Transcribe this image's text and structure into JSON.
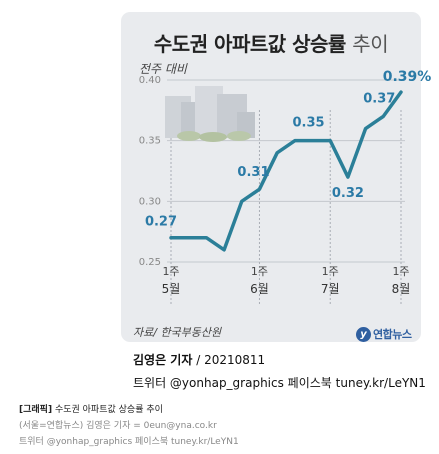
{
  "chart_data": {
    "type": "line",
    "title": "수도권 아파트값 상승률",
    "title_suffix": "추이",
    "subtitle": "전주 대비",
    "x": [
      0,
      1,
      2,
      3,
      4,
      5,
      6,
      7,
      8,
      9,
      10,
      11,
      12,
      13
    ],
    "values": [
      0.27,
      0.27,
      0.27,
      0.26,
      0.3,
      0.31,
      0.34,
      0.35,
      0.35,
      0.35,
      0.32,
      0.36,
      0.37,
      0.39
    ],
    "data_labels": [
      {
        "index": 0,
        "text": "0.27"
      },
      {
        "index": 5,
        "text": "0.31"
      },
      {
        "index": 8,
        "text": "0.35"
      },
      {
        "index": 10,
        "text": "0.32"
      },
      {
        "index": 12,
        "text": "0.37"
      },
      {
        "index": 13,
        "text": "0.39%"
      }
    ],
    "ylim": [
      0.25,
      0.4
    ],
    "y_ticks": [
      "0.25",
      "0.30",
      "0.35",
      "0.40"
    ],
    "x_ticks": [
      {
        "index": 0,
        "week": "1주",
        "month": "5월"
      },
      {
        "index": 5,
        "week": "1주",
        "month": "6월"
      },
      {
        "index": 9,
        "week": "1주",
        "month": "7월"
      },
      {
        "index": 13,
        "week": "1주",
        "month": "8월"
      }
    ],
    "grid": true,
    "line_color": "#2b7f98",
    "label_color": "#2b7aa6"
  },
  "source": "자료/ 한국부동산원",
  "logo_text": "연합뉴스",
  "logo_mark": "y",
  "reporter": {
    "name": "김영은 기자",
    "date": "20210811"
  },
  "social": "트위터 @yonhap_graphics  페이스북 tuney.kr/LeYN1",
  "caption": {
    "line1_label": "[그래픽]",
    "line1_title": "수도권 아파트값 상승률 추이",
    "line2": "(서울=연합뉴스) 김영은 기자 = 0eun@yna.co.kr",
    "line3": "트위터 @yonhap_graphics 페이스북 tuney.kr/LeYN1"
  }
}
